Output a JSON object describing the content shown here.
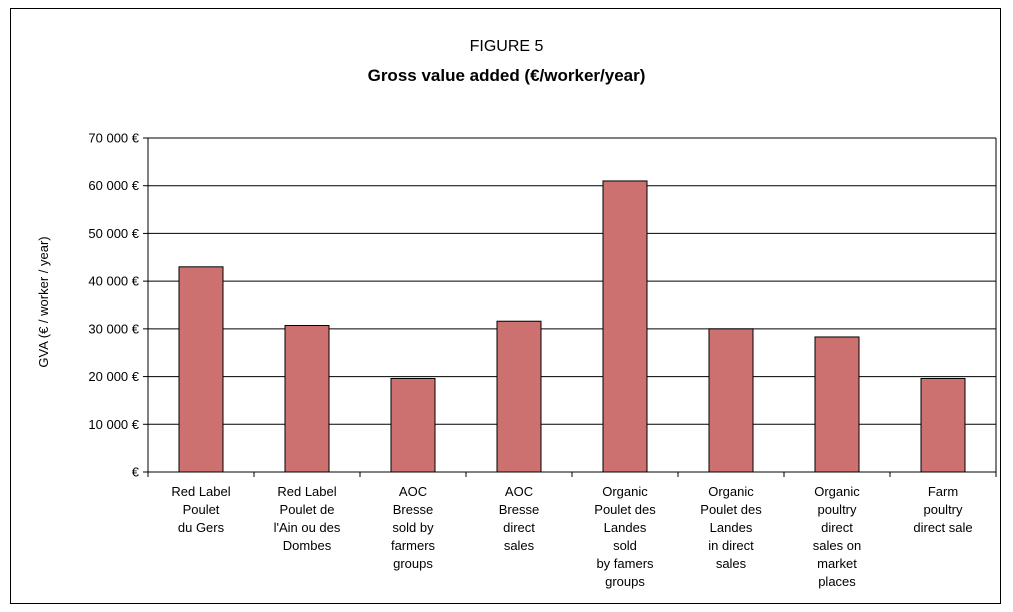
{
  "figure_label": "FIGURE 5",
  "chart_data": {
    "type": "bar",
    "title": "Gross value added (€/worker/year)",
    "xlabel": "",
    "ylabel": "GVA (€ / worker / year)",
    "ylim": [
      0,
      70000
    ],
    "yticks": [
      0,
      10000,
      20000,
      30000,
      40000,
      50000,
      60000,
      70000
    ],
    "ytick_labels": [
      "€",
      "10 000 €",
      "20 000 €",
      "30 000 €",
      "40 000 €",
      "50 000 €",
      "60 000 €",
      "70 000 €"
    ],
    "grid": true,
    "categories": [
      [
        "Red Label",
        "Poulet",
        "du Gers"
      ],
      [
        "Red Label",
        "Poulet de",
        "l'Ain ou des",
        "Dombes"
      ],
      [
        "AOC",
        "Bresse",
        "sold by",
        "farmers",
        "groups"
      ],
      [
        "AOC",
        "Bresse",
        "direct",
        "sales"
      ],
      [
        "Organic",
        "Poulet des",
        "Landes",
        "sold",
        "by famers",
        "groups"
      ],
      [
        "Organic",
        "Poulet des",
        "Landes",
        "in direct",
        "sales"
      ],
      [
        "Organic",
        "poultry",
        "direct",
        "sales on",
        "market",
        "places"
      ],
      [
        "Farm",
        "poultry",
        "direct sale"
      ]
    ],
    "values": [
      43000,
      30700,
      19600,
      31600,
      61000,
      30000,
      28300,
      19600
    ],
    "bar_color": "#cc7070"
  }
}
